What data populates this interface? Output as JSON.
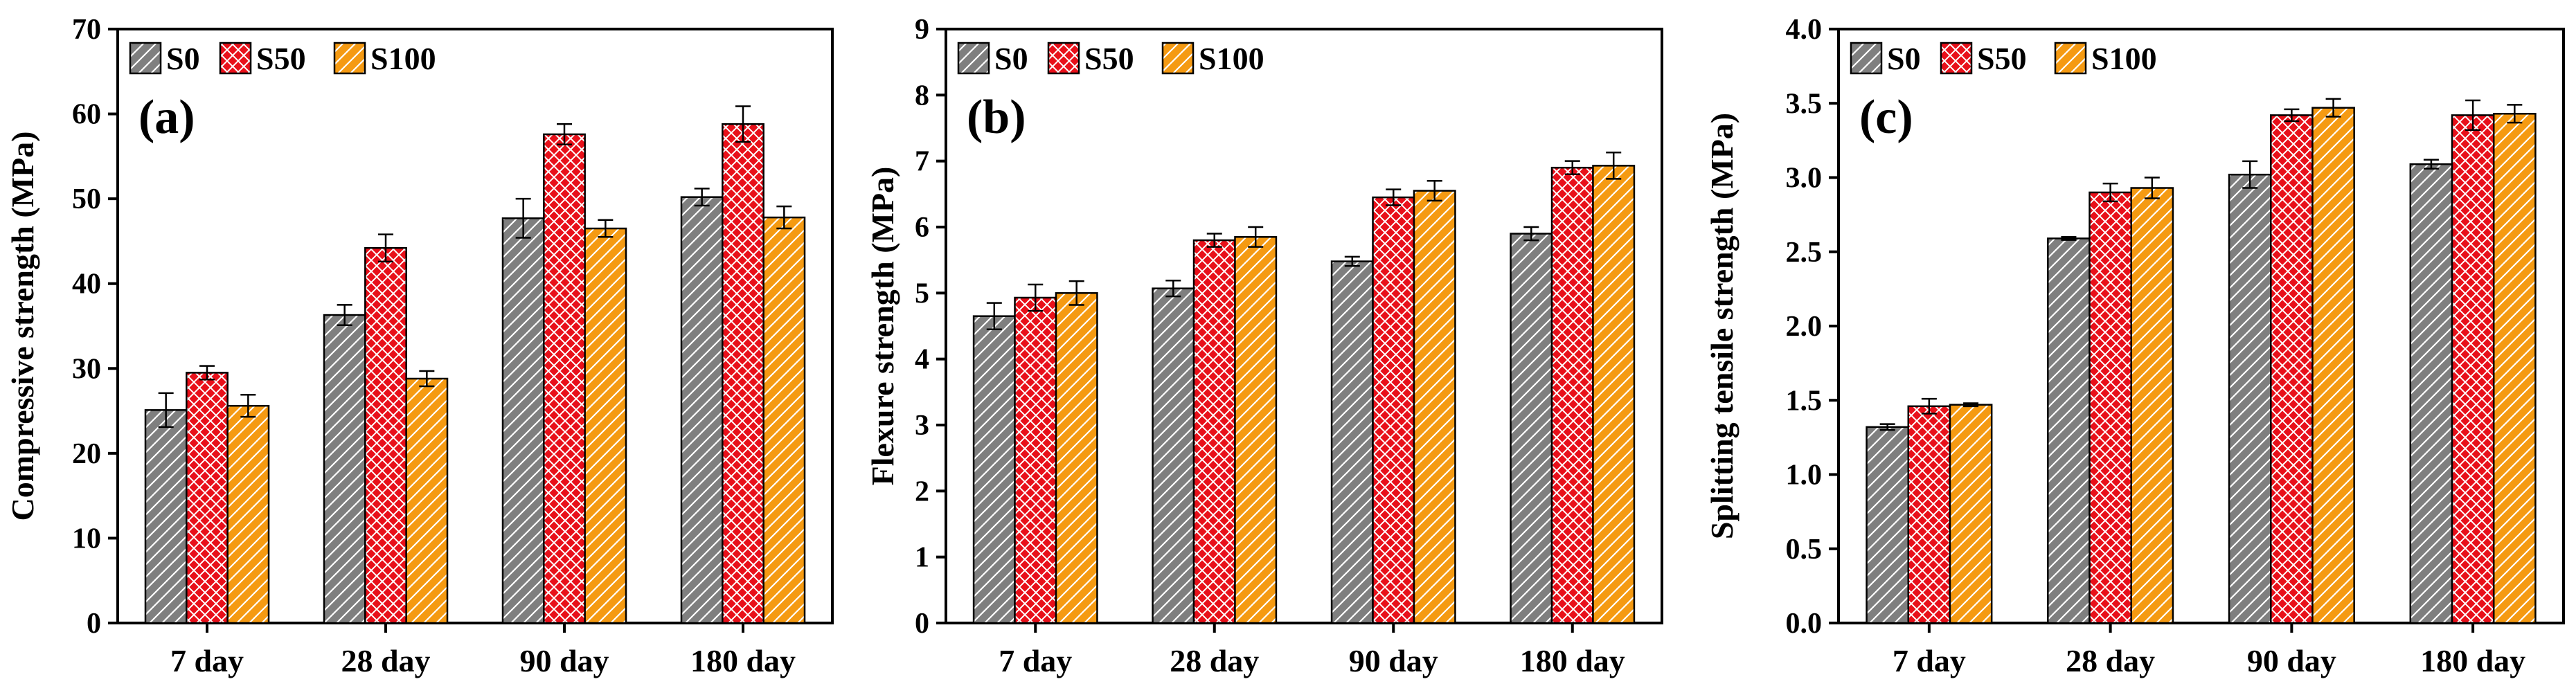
{
  "chart_data": [
    {
      "type": "bar",
      "panel_label": "(a)",
      "ylabel": "Compressive strength (MPa)",
      "xlabel": "",
      "categories": [
        "7 day",
        "28 day",
        "90 day",
        "180 day"
      ],
      "ylim": [
        0,
        70
      ],
      "yticks": [
        0,
        10,
        20,
        30,
        40,
        50,
        60,
        70
      ],
      "ytick_labels": [
        "0",
        "10",
        "20",
        "30",
        "40",
        "50",
        "60",
        "70"
      ],
      "legend_position": "top-left",
      "series": [
        {
          "name": "S0",
          "values": [
            25.1,
            36.3,
            47.7,
            50.2
          ],
          "errors": [
            2.0,
            1.2,
            2.3,
            1.0
          ]
        },
        {
          "name": "S50",
          "values": [
            29.5,
            44.2,
            57.6,
            58.8
          ],
          "errors": [
            0.8,
            1.6,
            1.2,
            2.1
          ]
        },
        {
          "name": "S100",
          "values": [
            25.6,
            28.8,
            46.5,
            47.8
          ],
          "errors": [
            1.3,
            0.9,
            1.0,
            1.3
          ]
        }
      ]
    },
    {
      "type": "bar",
      "panel_label": "(b)",
      "ylabel": "Flexure strength (MPa)",
      "xlabel": "",
      "categories": [
        "7 day",
        "28 day",
        "90 day",
        "180 day"
      ],
      "ylim": [
        0,
        9
      ],
      "yticks": [
        0,
        1,
        2,
        3,
        4,
        5,
        6,
        7,
        8,
        9
      ],
      "ytick_labels": [
        "0",
        "1",
        "2",
        "3",
        "4",
        "5",
        "6",
        "7",
        "8",
        "9"
      ],
      "legend_position": "top-left",
      "series": [
        {
          "name": "S0",
          "values": [
            4.65,
            5.07,
            5.48,
            5.9
          ],
          "errors": [
            0.2,
            0.12,
            0.07,
            0.1
          ]
        },
        {
          "name": "S50",
          "values": [
            4.93,
            5.8,
            6.45,
            6.9
          ],
          "errors": [
            0.2,
            0.1,
            0.12,
            0.1
          ]
        },
        {
          "name": "S100",
          "values": [
            5.0,
            5.85,
            6.55,
            6.93
          ],
          "errors": [
            0.18,
            0.15,
            0.15,
            0.2
          ]
        }
      ]
    },
    {
      "type": "bar",
      "panel_label": "(c)",
      "ylabel": "Splitting tensile strength (MPa)",
      "xlabel": "",
      "categories": [
        "7 day",
        "28 day",
        "90 day",
        "180 day"
      ],
      "ylim": [
        0,
        4.0
      ],
      "yticks": [
        0,
        0.5,
        1.0,
        1.5,
        2.0,
        2.5,
        3.0,
        3.5,
        4.0
      ],
      "ytick_labels": [
        "0.0",
        "0.5",
        "1.0",
        "1.5",
        "2.0",
        "2.5",
        "3.0",
        "3.5",
        "4.0"
      ],
      "legend_position": "top-left",
      "series": [
        {
          "name": "S0",
          "values": [
            1.32,
            2.59,
            3.02,
            3.09
          ],
          "errors": [
            0.02,
            0.01,
            0.09,
            0.03
          ]
        },
        {
          "name": "S50",
          "values": [
            1.46,
            2.9,
            3.42,
            3.42
          ],
          "errors": [
            0.05,
            0.06,
            0.04,
            0.1
          ]
        },
        {
          "name": "S100",
          "values": [
            1.47,
            2.93,
            3.47,
            3.43
          ],
          "errors": [
            0.01,
            0.07,
            0.06,
            0.06
          ]
        }
      ]
    }
  ],
  "series_style": {
    "S0": {
      "color": "#7f7f7f",
      "pattern": "diagonal-hatch-icon"
    },
    "S50": {
      "color": "#e8101a",
      "pattern": "crosshatch-icon"
    },
    "S100": {
      "color": "#f59a12",
      "pattern": "diagonal-hatch-icon"
    }
  }
}
